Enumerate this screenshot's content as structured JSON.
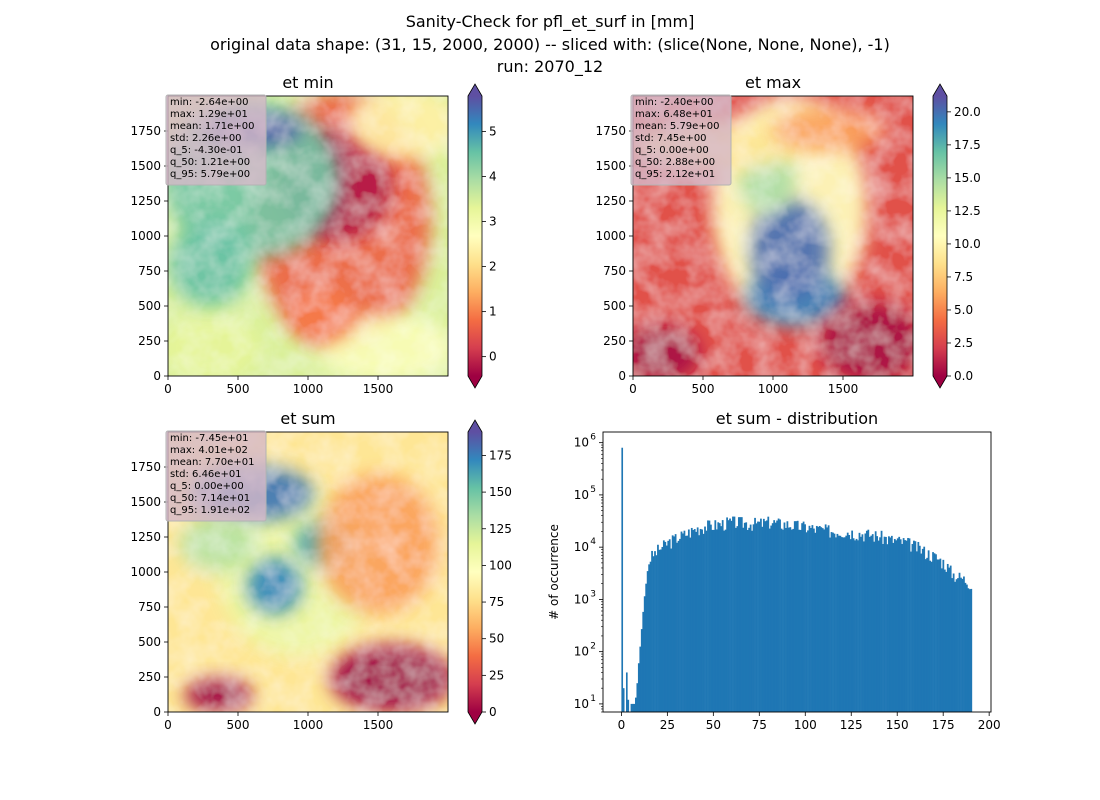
{
  "figure": {
    "suptitle_lines": [
      "Sanity-Check for pfl_et_surf in [mm]",
      "original data shape: (31, 15, 2000, 2000) -- sliced with: (slice(None, None, None), -1)",
      "run: 2070_12"
    ]
  },
  "colors": {
    "cmap": [
      "#9e0142",
      "#d53e4f",
      "#f46d43",
      "#fdae61",
      "#fee08b",
      "#ffffbf",
      "#e6f598",
      "#abdda4",
      "#66c2a5",
      "#3288bd",
      "#5e4fa2"
    ],
    "bar": "#1f77b4"
  },
  "chart_data": [
    {
      "type": "heatmap",
      "title": "et min",
      "xlabel": "",
      "ylabel": "",
      "xticks": [
        0,
        500,
        1000,
        1500
      ],
      "yticks": [
        0,
        250,
        500,
        750,
        1000,
        1250,
        1500,
        1750
      ],
      "xlim": [
        0,
        2000
      ],
      "ylim": [
        0,
        2000
      ],
      "colorbar": {
        "vmin": -0.43,
        "vmax": 5.79,
        "ticks": [
          0,
          1,
          2,
          3,
          4,
          5
        ],
        "tick_labels": [
          "0",
          "1",
          "2",
          "3",
          "4",
          "5"
        ],
        "extend": "both"
      },
      "stats": [
        "min: -2.64e+00",
        "max: 1.29e+01",
        "mean: 1.71e+00",
        "std: 2.26e+00",
        "q_5: -4.30e-01",
        "q_50: 1.21e+00",
        "q_95: 5.79e+00"
      ]
    },
    {
      "type": "heatmap",
      "title": "et max",
      "xlabel": "",
      "ylabel": "",
      "xticks": [
        0,
        500,
        1000,
        1500
      ],
      "yticks": [
        0,
        250,
        500,
        750,
        1000,
        1250,
        1500,
        1750
      ],
      "xlim": [
        0,
        2000
      ],
      "ylim": [
        0,
        2000
      ],
      "colorbar": {
        "vmin": 0,
        "vmax": 21.2,
        "ticks": [
          0,
          2.5,
          5,
          7.5,
          10,
          12.5,
          15,
          17.5,
          20
        ],
        "tick_labels": [
          "0.0",
          "2.5",
          "5.0",
          "7.5",
          "10.0",
          "12.5",
          "15.0",
          "17.5",
          "20.0"
        ],
        "extend": "both"
      },
      "stats": [
        "min: -2.40e+00",
        "max: 6.48e+01",
        "mean: 5.79e+00",
        "std: 7.45e+00",
        "q_5: 0.00e+00",
        "q_50: 2.88e+00",
        "q_95: 2.12e+01"
      ]
    },
    {
      "type": "heatmap",
      "title": "et sum",
      "xlabel": "",
      "ylabel": "",
      "xticks": [
        0,
        500,
        1000,
        1500
      ],
      "yticks": [
        0,
        250,
        500,
        750,
        1000,
        1250,
        1500,
        1750
      ],
      "xlim": [
        0,
        2000
      ],
      "ylim": [
        0,
        2000
      ],
      "colorbar": {
        "vmin": 0,
        "vmax": 191,
        "ticks": [
          0,
          25,
          50,
          75,
          100,
          125,
          150,
          175
        ],
        "tick_labels": [
          "0",
          "25",
          "50",
          "75",
          "100",
          "125",
          "150",
          "175"
        ],
        "extend": "both"
      },
      "stats": [
        "min: -7.45e+01",
        "max: 4.01e+02",
        "mean: 7.70e+01",
        "std: 6.46e+01",
        "q_5: 0.00e+00",
        "q_50: 7.14e+01",
        "q_95: 1.91e+02"
      ]
    },
    {
      "type": "bar",
      "title": "et sum - distribution",
      "xlabel": "",
      "ylabel": "# of occurrence",
      "yscale": "log",
      "xlim": [
        -10,
        201
      ],
      "ylim": [
        7,
        1600000
      ],
      "xticks": [
        0,
        25,
        50,
        75,
        100,
        125,
        150,
        175,
        200
      ],
      "yticks": [
        10,
        100,
        1000,
        10000,
        100000,
        1000000
      ],
      "ytick_labels": [
        [
          "10",
          "1"
        ],
        [
          "10",
          "2"
        ],
        [
          "10",
          "3"
        ],
        [
          "10",
          "4"
        ],
        [
          "10",
          "5"
        ],
        [
          "10",
          "6"
        ]
      ],
      "x": [
        0,
        0.8,
        2.5,
        3.3,
        5,
        6,
        7,
        8,
        9,
        10,
        11,
        12,
        13,
        14,
        15,
        20,
        25,
        30,
        35,
        40,
        45,
        50,
        55,
        60,
        65,
        70,
        75,
        80,
        85,
        90,
        95,
        100,
        105,
        110,
        115,
        120,
        125,
        130,
        135,
        140,
        145,
        150,
        155,
        160,
        165,
        170,
        175,
        180,
        185,
        190
      ],
      "values": [
        800000,
        20,
        40,
        12,
        10,
        10,
        10,
        20,
        60,
        150,
        400,
        1000,
        2000,
        4000,
        6000,
        9000,
        12000,
        15000,
        18000,
        22000,
        25000,
        26000,
        28000,
        30000,
        29000,
        28000,
        28000,
        30000,
        28000,
        27000,
        25000,
        24000,
        22000,
        21000,
        20000,
        20000,
        19000,
        18000,
        17000,
        16000,
        14000,
        13000,
        12000,
        10000,
        8000,
        6500,
        5000,
        3000,
        2500,
        2000
      ]
    }
  ]
}
